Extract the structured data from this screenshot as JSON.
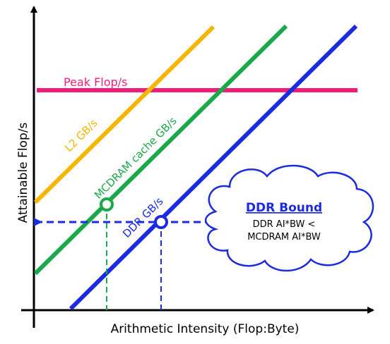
{
  "colors": {
    "peak": "#ee1d7a",
    "l2": "#f7b500",
    "mcdram": "#1aa84a",
    "ddr": "#1b2be0",
    "axis": "#000000"
  },
  "axes": {
    "x_label": "Arithmetic Intensity (Flop:Byte)",
    "y_label": "Attainable Flop/s"
  },
  "lines": {
    "peak_label": "Peak Flop/s",
    "l2_label": "L2 GB/s",
    "mcdram_label": "MCDRAM cache GB/s",
    "ddr_label": "DDR GB/s"
  },
  "cloud": {
    "title": "DDR Bound",
    "line1": "DDR AI*BW <",
    "line2": "MCDRAM AI*BW"
  }
}
